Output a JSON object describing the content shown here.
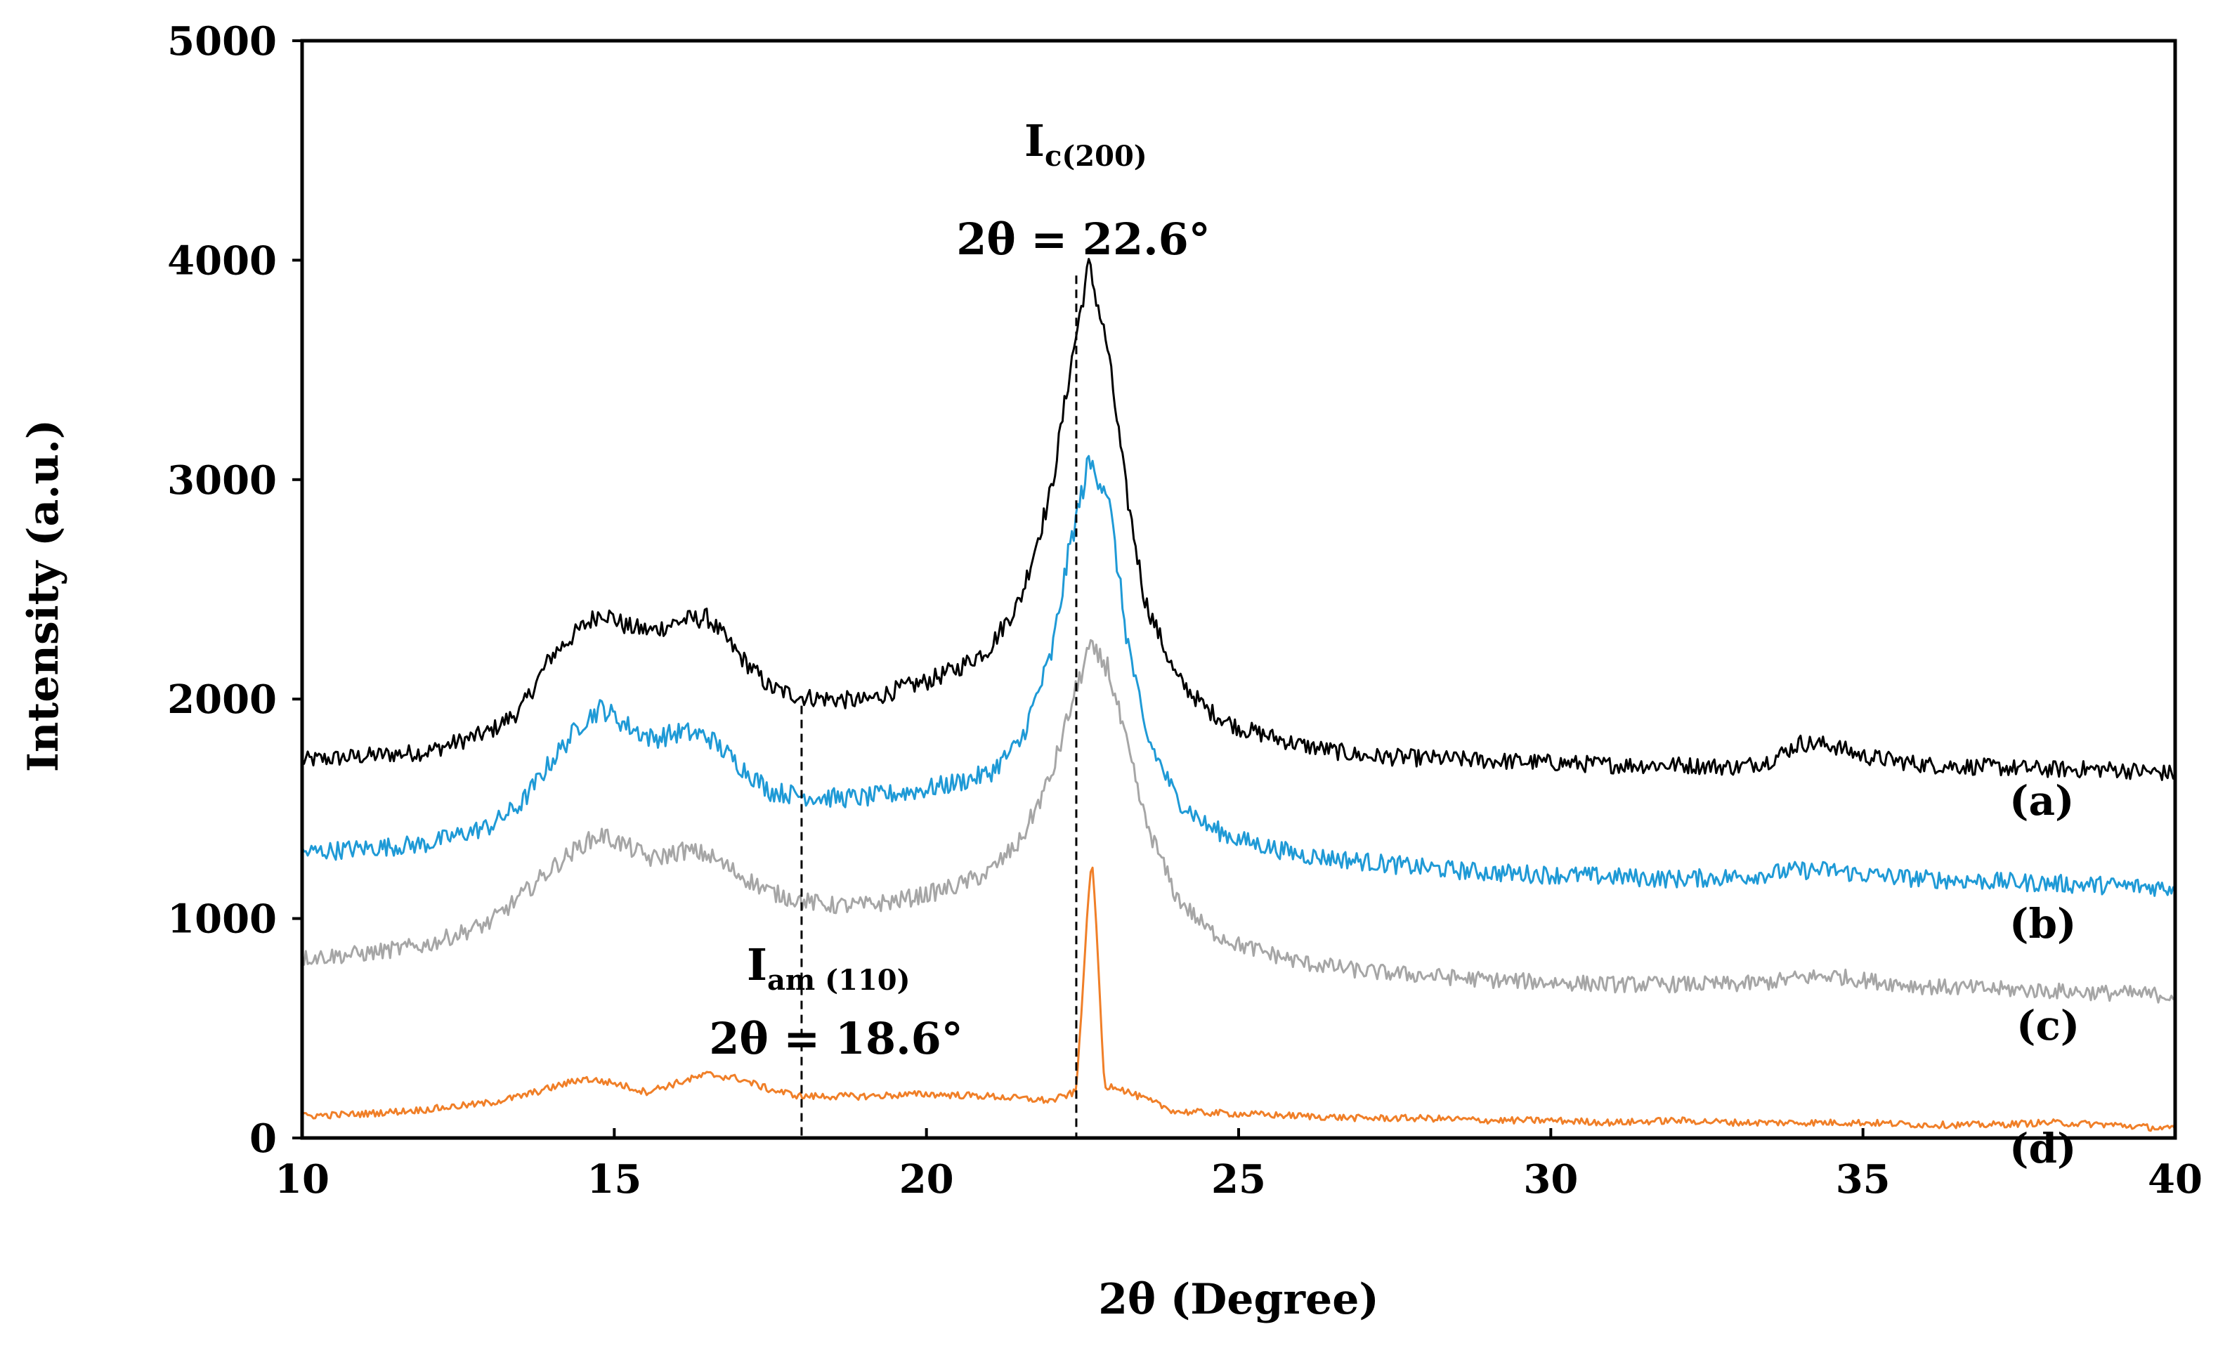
{
  "chart_data": {
    "type": "line",
    "title": "",
    "xlabel": "2θ (Degree)",
    "ylabel": "Intensity (a.u.)",
    "xlim": [
      10,
      40
    ],
    "ylim": [
      0,
      5000
    ],
    "x_ticks": [
      10,
      15,
      20,
      25,
      30,
      35,
      40
    ],
    "y_ticks": [
      0,
      1000,
      2000,
      3000,
      4000,
      5000
    ],
    "grid": false,
    "series": [
      {
        "name": "(a)",
        "color": "#000000",
        "noise": 25,
        "points": [
          [
            10,
            1720
          ],
          [
            11,
            1740
          ],
          [
            12,
            1760
          ],
          [
            13,
            1850
          ],
          [
            13.5,
            1950
          ],
          [
            14,
            2200
          ],
          [
            14.5,
            2330
          ],
          [
            14.8,
            2400
          ],
          [
            15.2,
            2330
          ],
          [
            15.6,
            2310
          ],
          [
            16.1,
            2360
          ],
          [
            16.5,
            2370
          ],
          [
            17,
            2200
          ],
          [
            17.5,
            2050
          ],
          [
            18,
            2010
          ],
          [
            18.5,
            2000
          ],
          [
            19,
            1990
          ],
          [
            19.5,
            2040
          ],
          [
            20,
            2080
          ],
          [
            20.5,
            2140
          ],
          [
            21,
            2230
          ],
          [
            21.5,
            2450
          ],
          [
            22,
            2950
          ],
          [
            22.3,
            3500
          ],
          [
            22.6,
            3980
          ],
          [
            22.9,
            3600
          ],
          [
            23.2,
            2950
          ],
          [
            23.5,
            2450
          ],
          [
            24,
            2100
          ],
          [
            24.5,
            1950
          ],
          [
            25,
            1870
          ],
          [
            26,
            1790
          ],
          [
            27,
            1740
          ],
          [
            28,
            1730
          ],
          [
            29,
            1720
          ],
          [
            30,
            1710
          ],
          [
            31,
            1700
          ],
          [
            32,
            1700
          ],
          [
            33,
            1690
          ],
          [
            33.5,
            1720
          ],
          [
            34,
            1800
          ],
          [
            34.5,
            1790
          ],
          [
            35,
            1740
          ],
          [
            36,
            1700
          ],
          [
            37,
            1690
          ],
          [
            38,
            1680
          ],
          [
            39,
            1680
          ],
          [
            40,
            1660
          ]
        ]
      },
      {
        "name": "(b)",
        "color": "#1f9ad6",
        "noise": 30,
        "points": [
          [
            10,
            1300
          ],
          [
            11,
            1320
          ],
          [
            12,
            1340
          ],
          [
            13,
            1420
          ],
          [
            13.5,
            1520
          ],
          [
            14,
            1720
          ],
          [
            14.5,
            1900
          ],
          [
            14.8,
            1960
          ],
          [
            15.2,
            1880
          ],
          [
            15.6,
            1820
          ],
          [
            16.1,
            1850
          ],
          [
            16.5,
            1830
          ],
          [
            17,
            1700
          ],
          [
            17.5,
            1580
          ],
          [
            18,
            1560
          ],
          [
            18.5,
            1550
          ],
          [
            19,
            1550
          ],
          [
            19.5,
            1570
          ],
          [
            20,
            1590
          ],
          [
            20.5,
            1620
          ],
          [
            21,
            1660
          ],
          [
            21.5,
            1800
          ],
          [
            22,
            2200
          ],
          [
            22.3,
            2700
          ],
          [
            22.6,
            3080
          ],
          [
            22.9,
            2950
          ],
          [
            23.2,
            2300
          ],
          [
            23.5,
            1850
          ],
          [
            24,
            1550
          ],
          [
            24.5,
            1420
          ],
          [
            25,
            1360
          ],
          [
            26,
            1290
          ],
          [
            27,
            1260
          ],
          [
            28,
            1230
          ],
          [
            29,
            1210
          ],
          [
            30,
            1200
          ],
          [
            31,
            1190
          ],
          [
            32,
            1180
          ],
          [
            33,
            1190
          ],
          [
            34,
            1220
          ],
          [
            34.5,
            1220
          ],
          [
            35,
            1200
          ],
          [
            36,
            1180
          ],
          [
            37,
            1170
          ],
          [
            38,
            1160
          ],
          [
            39,
            1150
          ],
          [
            40,
            1140
          ]
        ]
      },
      {
        "name": "(c)",
        "color": "#a6a6a6",
        "noise": 30,
        "points": [
          [
            10,
            820
          ],
          [
            11,
            840
          ],
          [
            12,
            880
          ],
          [
            13,
            980
          ],
          [
            13.5,
            1100
          ],
          [
            14,
            1230
          ],
          [
            14.5,
            1340
          ],
          [
            14.8,
            1380
          ],
          [
            15.2,
            1330
          ],
          [
            15.6,
            1270
          ],
          [
            16.1,
            1310
          ],
          [
            16.5,
            1290
          ],
          [
            17,
            1200
          ],
          [
            17.5,
            1120
          ],
          [
            18,
            1080
          ],
          [
            18.5,
            1060
          ],
          [
            19,
            1060
          ],
          [
            19.5,
            1080
          ],
          [
            20,
            1110
          ],
          [
            20.5,
            1150
          ],
          [
            21,
            1210
          ],
          [
            21.5,
            1350
          ],
          [
            22,
            1650
          ],
          [
            22.3,
            1950
          ],
          [
            22.6,
            2230
          ],
          [
            22.9,
            2150
          ],
          [
            23.2,
            1800
          ],
          [
            23.5,
            1450
          ],
          [
            24,
            1100
          ],
          [
            24.5,
            950
          ],
          [
            25,
            880
          ],
          [
            26,
            800
          ],
          [
            27,
            760
          ],
          [
            28,
            740
          ],
          [
            29,
            720
          ],
          [
            30,
            710
          ],
          [
            31,
            700
          ],
          [
            32,
            700
          ],
          [
            33,
            700
          ],
          [
            33.5,
            710
          ],
          [
            34,
            730
          ],
          [
            34.5,
            740
          ],
          [
            35,
            720
          ],
          [
            36,
            690
          ],
          [
            37,
            680
          ],
          [
            38,
            670
          ],
          [
            39,
            660
          ],
          [
            40,
            650
          ]
        ]
      },
      {
        "name": "(d)",
        "color": "#f07f28",
        "noise": 15,
        "points": [
          [
            10,
            100
          ],
          [
            11,
            110
          ],
          [
            12,
            130
          ],
          [
            13,
            160
          ],
          [
            13.5,
            190
          ],
          [
            14,
            230
          ],
          [
            14.5,
            270
          ],
          [
            15,
            250
          ],
          [
            15.5,
            210
          ],
          [
            16,
            250
          ],
          [
            16.5,
            290
          ],
          [
            17,
            270
          ],
          [
            17.5,
            220
          ],
          [
            18,
            190
          ],
          [
            19,
            190
          ],
          [
            20,
            200
          ],
          [
            21,
            190
          ],
          [
            22,
            170
          ],
          [
            22.4,
            210
          ],
          [
            22.55,
            900
          ],
          [
            22.65,
            1300
          ],
          [
            22.75,
            800
          ],
          [
            22.85,
            230
          ],
          [
            23,
            240
          ],
          [
            23.3,
            200
          ],
          [
            24,
            120
          ],
          [
            25,
            110
          ],
          [
            26,
            100
          ],
          [
            27,
            90
          ],
          [
            28,
            90
          ],
          [
            29,
            80
          ],
          [
            30,
            80
          ],
          [
            31,
            70
          ],
          [
            32,
            80
          ],
          [
            33,
            70
          ],
          [
            34,
            70
          ],
          [
            35,
            70
          ],
          [
            36,
            60
          ],
          [
            37,
            60
          ],
          [
            38,
            70
          ],
          [
            39,
            60
          ],
          [
            40,
            40
          ]
        ]
      }
    ],
    "reference_lines": [
      {
        "x": 18.0,
        "y_top": 1970,
        "label_line1_main": "I",
        "label_line1_sub": "am (110)",
        "label_line2": "2θ = 18.6°"
      },
      {
        "x": 22.4,
        "y_top": 3930,
        "label_line1_main": "I",
        "label_line1_sub": "c(200)",
        "label_line2": "2θ = 22.6°"
      }
    ]
  }
}
